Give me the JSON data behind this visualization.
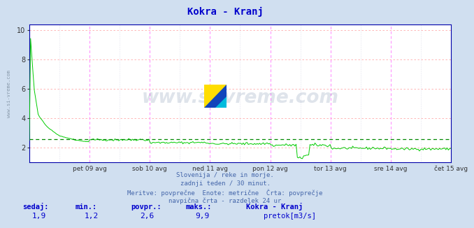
{
  "title": "Kokra - Kranj",
  "title_color": "#0000cc",
  "background_color": "#d0dff0",
  "plot_background": "#ffffff",
  "ylim": [
    1.0,
    10.4
  ],
  "yticks": [
    2,
    4,
    6,
    8,
    10
  ],
  "line_color": "#00cc00",
  "avg_line_color": "#008800",
  "avg_value": 2.6,
  "x_labels": [
    "pet 09 avg",
    "sob 10 avg",
    "ned 11 avg",
    "pon 12 avg",
    "tor 13 avg",
    "sre 14 avg",
    "čet 15 avg"
  ],
  "n_days": 7,
  "watermark": "www.si-vreme.com",
  "watermark_color": "#2a4a7a",
  "subtitle_lines": [
    "Slovenija / reke in morje.",
    "zadnji teden / 30 minut.",
    "Meritve: povprečne  Enote: metrične  Črta: povprečje",
    "navpična črta - razdelek 24 ur"
  ],
  "subtitle_color": "#4466aa",
  "stats_labels": [
    "sedaj:",
    "min.:",
    "povpr.:",
    "maks.:"
  ],
  "stats_values": [
    "1,9",
    "1,2",
    "2,6",
    "9,9"
  ],
  "stats_color": "#0000cc",
  "legend_label": "Kokra - Kranj",
  "legend_unit": "pretok[m3/s]",
  "legend_color": "#00cc00",
  "watermark_alpha": 0.15,
  "grid_color_h": "#ffaaaa",
  "grid_color_v_major": "#ff88ff",
  "grid_color_v_minor": "#aaaacc",
  "border_color": "#0000aa",
  "left_label": "www.si-vreme.com",
  "left_label_color": "#8899aa"
}
